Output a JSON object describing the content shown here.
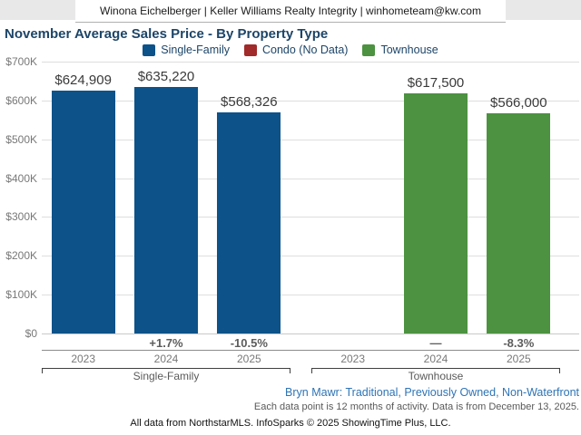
{
  "header": {
    "agent_info": "Winona Eichelberger | Keller Williams Realty Integrity | winhometeam@kw.com"
  },
  "title": "November Average Sales Price - By Property Type",
  "legend": [
    {
      "label": "Single-Family",
      "color": "#0d5289"
    },
    {
      "label": "Condo (No Data)",
      "color": "#a12a2a"
    },
    {
      "label": "Townhouse",
      "color": "#4c9240"
    }
  ],
  "chart_data": {
    "type": "bar",
    "title": "November Average Sales Price - By Property Type",
    "xlabel": "",
    "ylabel": "",
    "ylim": [
      0,
      700000
    ],
    "grid": true,
    "legend_position": "top-center",
    "ytick_labels": [
      "$700K",
      "$600K",
      "$500K",
      "$400K",
      "$300K",
      "$200K",
      "$100K",
      "$0"
    ],
    "categories": [
      "2023",
      "2024",
      "2025"
    ],
    "groups": [
      {
        "name": "Single-Family",
        "color": "#0d5289",
        "years": [
          "2023",
          "2024",
          "2025"
        ],
        "values": [
          624909,
          635220,
          568326
        ],
        "value_labels": [
          "$624,909",
          "$635,220",
          "$568,326"
        ],
        "pct_change": [
          "",
          "+1.7%",
          "-10.5%"
        ]
      },
      {
        "name": "Condo",
        "color": "#a12a2a",
        "years": [],
        "values": [],
        "value_labels": [],
        "pct_change": [],
        "note": "No Data"
      },
      {
        "name": "Townhouse",
        "color": "#4c9240",
        "years": [
          "2023",
          "2024",
          "2025"
        ],
        "values": [
          null,
          617500,
          566000
        ],
        "value_labels": [
          "",
          "$617,500",
          "$566,000"
        ],
        "pct_change": [
          "",
          "—",
          "-8.3%"
        ]
      }
    ]
  },
  "footer": {
    "filters": "Bryn Mawr: Traditional, Previously Owned, Non-Waterfront",
    "data_note": "Each data point is 12 months of activity. Data is from December 13, 2025.",
    "attribution": "All data from NorthstarMLS. InfoSparks © 2025 ShowingTime Plus, LLC."
  }
}
